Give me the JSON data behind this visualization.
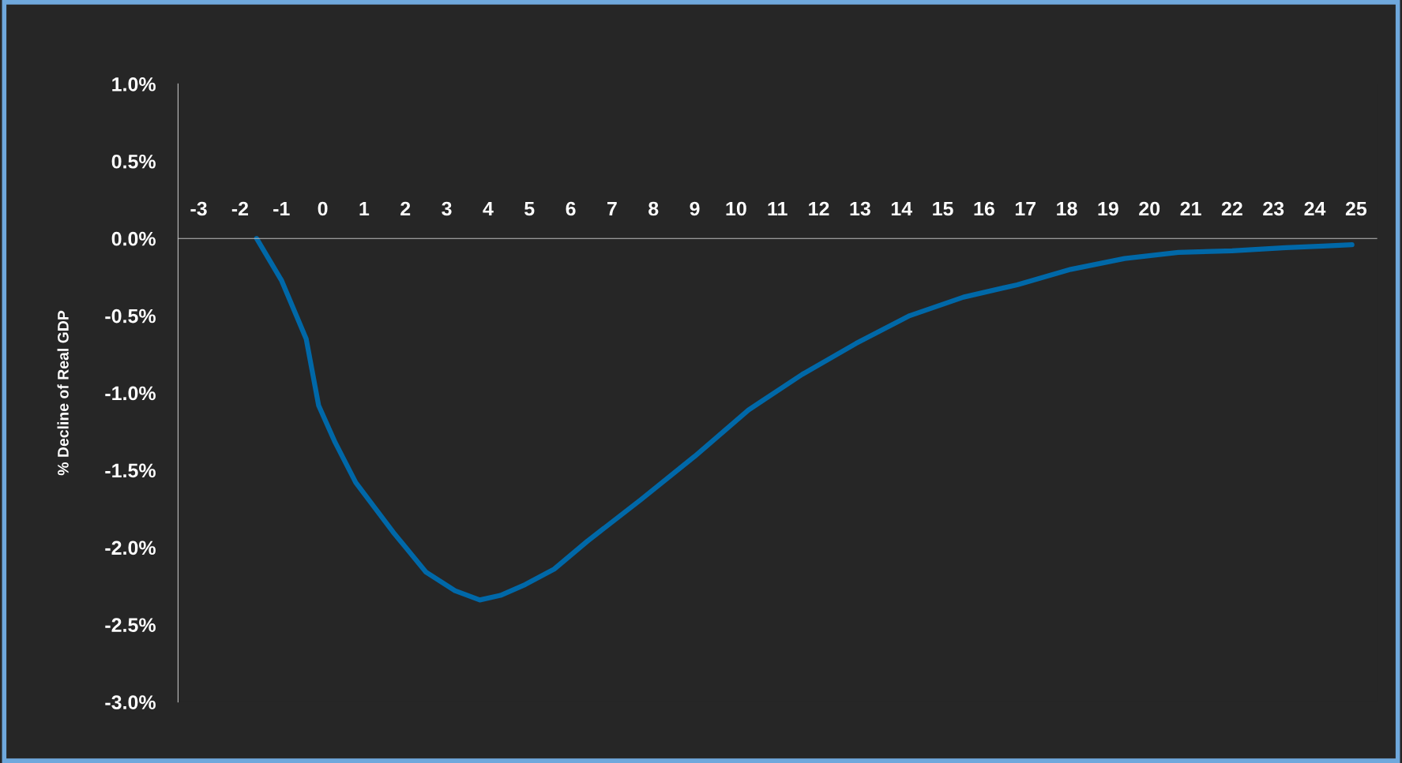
{
  "chart_data": {
    "type": "line",
    "ylabel": "% Decline of Real GDP",
    "x": [
      -1.6,
      -1.0,
      -0.4,
      -0.1,
      0.3,
      0.8,
      1.7,
      2.5,
      3.2,
      3.8,
      4.3,
      4.9,
      5.6,
      6.4,
      7.7,
      9.0,
      10.3,
      11.6,
      12.9,
      14.2,
      15.5,
      16.8,
      18.1,
      19.4,
      20.7,
      22.0,
      23.3,
      24.2,
      24.9
    ],
    "series": [
      {
        "color": "#0068a8",
        "values": [
          0.0,
          -0.27,
          -0.65,
          -1.08,
          -1.32,
          -1.58,
          -1.9,
          -2.16,
          -2.28,
          -2.34,
          -2.31,
          -2.24,
          -2.14,
          -1.96,
          -1.69,
          -1.41,
          -1.11,
          -0.88,
          -0.68,
          -0.5,
          -0.38,
          -0.3,
          -0.2,
          -0.13,
          -0.09,
          -0.08,
          -0.06,
          -0.05,
          -0.04
        ]
      }
    ],
    "xlim": [
      -3.5,
      25.5
    ],
    "xticks": [
      -3,
      -2,
      -1,
      0,
      1,
      2,
      3,
      4,
      5,
      6,
      7,
      8,
      9,
      10,
      11,
      12,
      13,
      14,
      15,
      16,
      17,
      18,
      19,
      20,
      21,
      22,
      23,
      24,
      25
    ],
    "ylim": [
      -3.0,
      1.0
    ],
    "yticks": [
      {
        "value": 1.0,
        "label": "1.0%"
      },
      {
        "value": 0.5,
        "label": "0.5%"
      },
      {
        "value": 0.0,
        "label": "0.0%"
      },
      {
        "value": -0.5,
        "label": "-0.5%"
      },
      {
        "value": -1.0,
        "label": "-1.0%"
      },
      {
        "value": -1.5,
        "label": "-1.5%"
      },
      {
        "value": -2.0,
        "label": "-2.0%"
      },
      {
        "value": -2.5,
        "label": "-2.5%"
      },
      {
        "value": -3.0,
        "label": "-3.0%"
      }
    ],
    "grid": false,
    "legend": false,
    "marker": "none",
    "line_style": "solid"
  }
}
